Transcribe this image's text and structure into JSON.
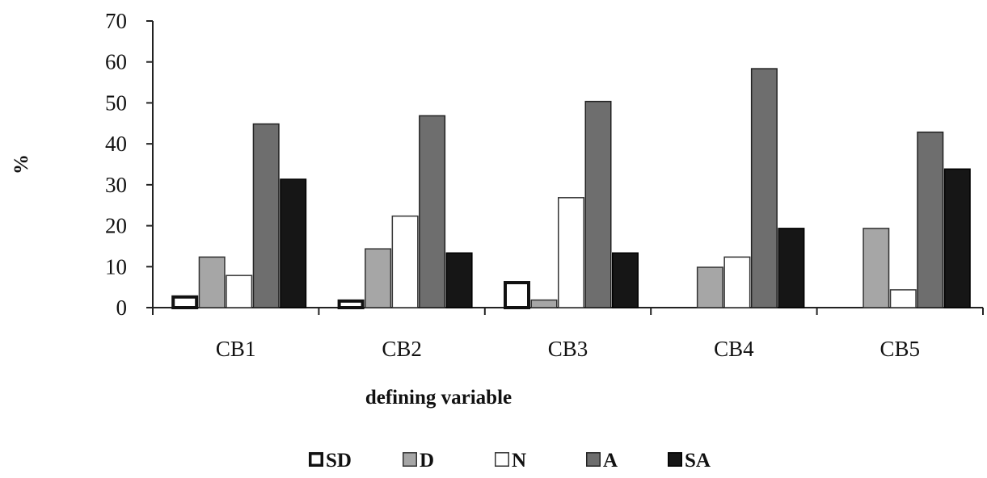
{
  "chart_data": {
    "type": "bar",
    "categories": [
      "CB1",
      "CB2",
      "CB3",
      "CB4",
      "CB5"
    ],
    "series": [
      {
        "name": "SD",
        "values": [
          3,
          2,
          6.5,
          0,
          0
        ],
        "color": "#ffffff",
        "stroke": "#111111",
        "thick": true
      },
      {
        "name": "D",
        "values": [
          12.5,
          14.5,
          2,
          10,
          19.5
        ],
        "color": "#a6a6a6",
        "stroke": "#333333",
        "thick": false
      },
      {
        "name": "N",
        "values": [
          8,
          22.5,
          27,
          12.5,
          4.5
        ],
        "color": "#ffffff",
        "stroke": "#333333",
        "thick": false
      },
      {
        "name": "A",
        "values": [
          45,
          47,
          50.5,
          58.5,
          43
        ],
        "color": "#6e6e6e",
        "stroke": "#222222",
        "thick": false
      },
      {
        "name": "SA",
        "values": [
          31.5,
          13.5,
          13.5,
          19.5,
          34
        ],
        "color": "#161616",
        "stroke": "#000000",
        "thick": false
      }
    ],
    "ylim": [
      0,
      70
    ],
    "yticks": [
      "0",
      "10",
      "20",
      "30",
      "40",
      "50",
      "60",
      "70"
    ],
    "ylabel": "%",
    "xlabel": "defining variable",
    "title": "",
    "grid": false,
    "legend_position": "bottom"
  }
}
